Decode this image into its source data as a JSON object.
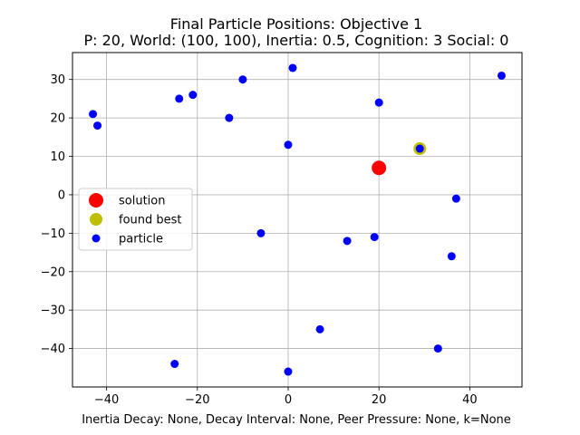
{
  "chart_data": {
    "type": "scatter",
    "title": "Final Particle Positions: Objective 1",
    "subtitle": "P: 20, World: (100, 100), Inertia: 0.5, Cognition: 3 Social: 0",
    "xlabel": "Inertia Decay: None, Decay Interval: None, Peer Pressure: None, k=None",
    "ylabel": "",
    "xlim": [
      -47.5,
      51.5
    ],
    "ylim": [
      -50,
      37
    ],
    "xticks": [
      -40,
      -20,
      0,
      20,
      40
    ],
    "yticks": [
      -40,
      -30,
      -20,
      -10,
      0,
      10,
      20,
      30
    ],
    "grid": true,
    "legend_position": "center-left",
    "series": [
      {
        "name": "solution",
        "color": "#ff0000",
        "marker": "large-circle",
        "points": [
          [
            20,
            7
          ]
        ]
      },
      {
        "name": "found best",
        "color": "#bfbf00",
        "marker": "medium-circle",
        "points": [
          [
            29,
            12
          ]
        ]
      },
      {
        "name": "particle",
        "color": "#0000ff",
        "marker": "small-circle",
        "points": [
          [
            -43,
            21
          ],
          [
            -42,
            18
          ],
          [
            -24,
            25
          ],
          [
            -21,
            26
          ],
          [
            -13,
            20
          ],
          [
            -10,
            30
          ],
          [
            1,
            33
          ],
          [
            0,
            13
          ],
          [
            20,
            24
          ],
          [
            47,
            31
          ],
          [
            29,
            12
          ],
          [
            37,
            -1
          ],
          [
            -6,
            -10
          ],
          [
            13,
            -12
          ],
          [
            19,
            -11
          ],
          [
            36,
            -16
          ],
          [
            7,
            -35
          ],
          [
            33,
            -40
          ],
          [
            -25,
            -44
          ],
          [
            0,
            -46
          ]
        ]
      }
    ]
  }
}
